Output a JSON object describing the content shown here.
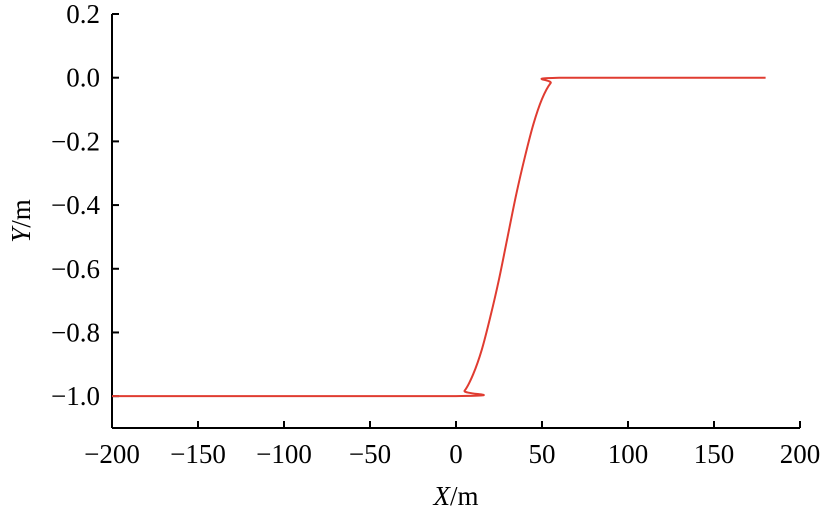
{
  "chart_data": {
    "type": "line",
    "title": "",
    "xlabel": {
      "var": "X",
      "unit": "/m"
    },
    "ylabel": {
      "var": "Y",
      "unit": "/m"
    },
    "xlim": [
      -200,
      200
    ],
    "ylim": [
      -1.1,
      0.2
    ],
    "grid": false,
    "x_ticks": [
      -200,
      -150,
      -100,
      -50,
      0,
      50,
      100,
      150,
      200
    ],
    "x_tick_labels": [
      "−200",
      "−150",
      "−100",
      "−50",
      "0",
      "50",
      "100",
      "150",
      "200"
    ],
    "y_ticks": [
      0.2,
      0.0,
      -0.2,
      -0.4,
      -0.6,
      -0.8,
      -1.0
    ],
    "y_tick_labels": [
      "0.2",
      "0.0",
      "−0.2",
      "−0.4",
      "−0.6",
      "−0.8",
      "−1.0"
    ],
    "series": [
      {
        "color": "#e03c31",
        "x": [
          -200,
          0,
          5,
          10,
          15,
          20,
          25,
          30,
          35,
          40,
          45,
          50,
          55,
          60,
          180
        ],
        "y": [
          -1.0,
          -1.0,
          -0.983,
          -0.931,
          -0.854,
          -0.75,
          -0.633,
          -0.5,
          -0.367,
          -0.25,
          -0.146,
          -0.067,
          -0.017,
          0.0,
          0.0
        ]
      }
    ]
  }
}
